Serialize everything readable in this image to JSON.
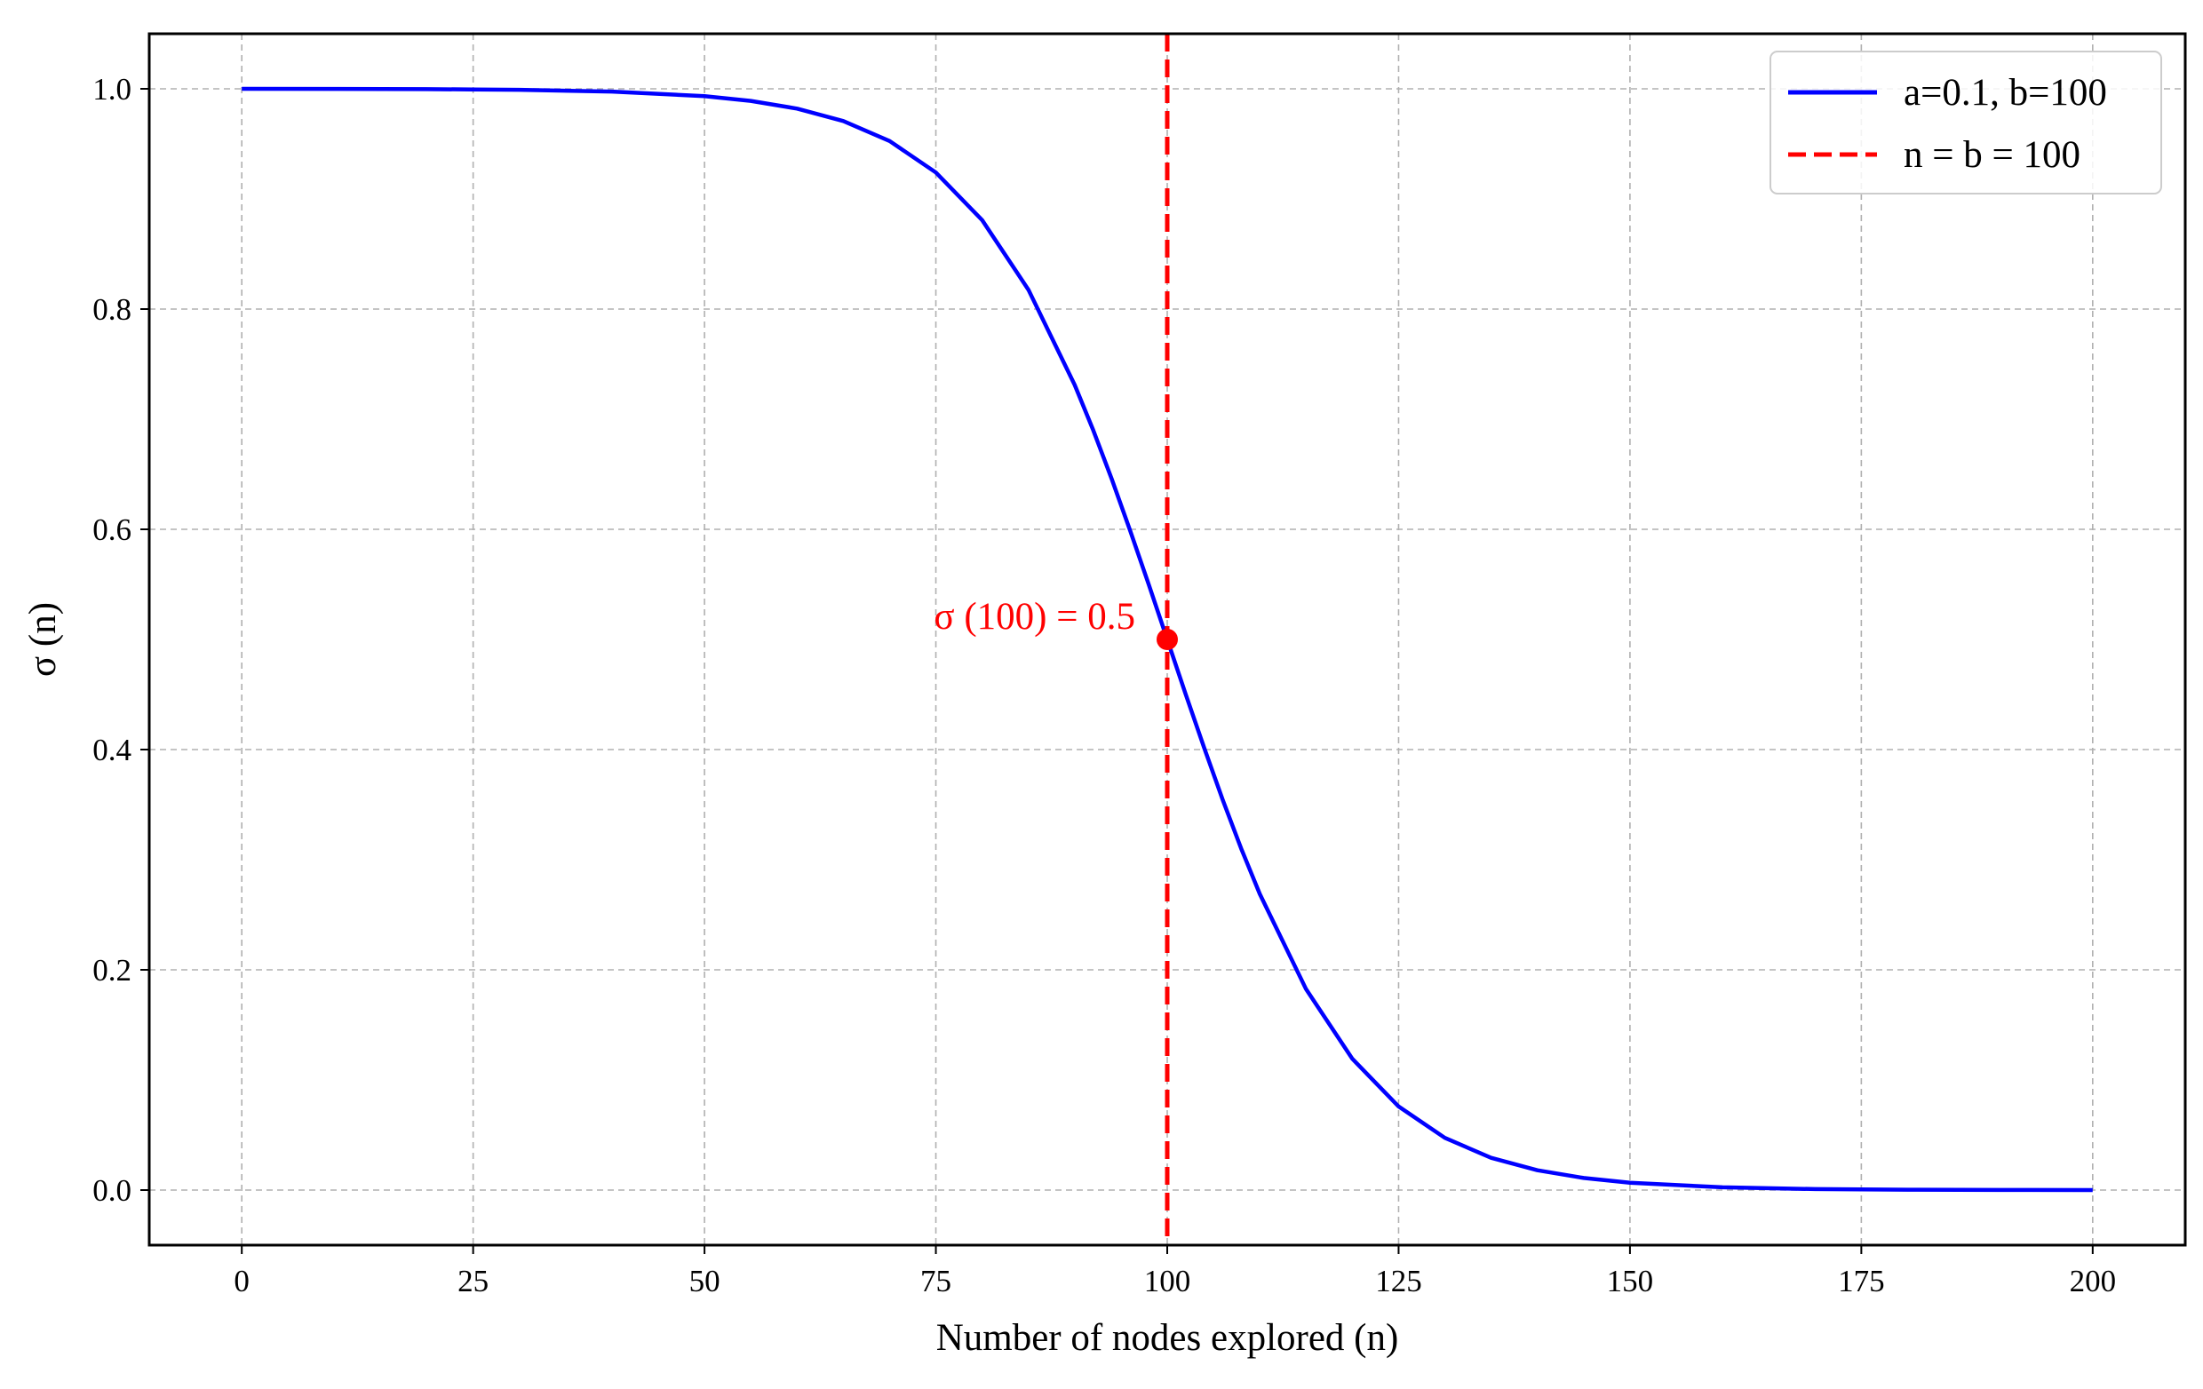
{
  "chart_data": {
    "type": "line",
    "title": "",
    "xlabel": "Number of nodes explored (n)",
    "ylabel": "σ (n)",
    "xlim": [
      -10,
      210
    ],
    "ylim": [
      -0.05,
      1.05
    ],
    "xticks": [
      0,
      25,
      50,
      75,
      100,
      125,
      150,
      175,
      200
    ],
    "yticks": [
      0.0,
      0.2,
      0.4,
      0.6,
      0.8,
      1.0
    ],
    "xtick_labels": [
      "0",
      "25",
      "50",
      "75",
      "100",
      "125",
      "150",
      "175",
      "200"
    ],
    "ytick_labels": [
      "0.0",
      "0.2",
      "0.4",
      "0.6",
      "0.8",
      "1.0"
    ],
    "grid": true,
    "legend_position": "top-right",
    "series": [
      {
        "name": "a=0.1, b=100",
        "color": "#0000ff",
        "style": "solid",
        "x": [
          0,
          10,
          20,
          25,
          30,
          40,
          50,
          55,
          60,
          65,
          70,
          75,
          80,
          85,
          90,
          92,
          94,
          96,
          98,
          100,
          102,
          104,
          106,
          108,
          110,
          115,
          120,
          125,
          130,
          135,
          140,
          145,
          150,
          160,
          170,
          175,
          180,
          190,
          200
        ],
        "y": [
          1.0,
          0.9999,
          0.9997,
          0.9994,
          0.9991,
          0.9975,
          0.9933,
          0.989,
          0.982,
          0.9707,
          0.9526,
          0.924,
          0.8808,
          0.8176,
          0.7311,
          0.69,
          0.6457,
          0.5987,
          0.5498,
          0.5,
          0.4502,
          0.4013,
          0.3543,
          0.31,
          0.2689,
          0.1824,
          0.1192,
          0.0759,
          0.0474,
          0.0293,
          0.018,
          0.011,
          0.0067,
          0.0025,
          0.0009,
          0.0006,
          0.0003,
          0.0001,
          0.0
        ]
      },
      {
        "name": "n = b = 100",
        "color": "#ff0000",
        "style": "dashed",
        "type": "vline",
        "x_value": 100
      }
    ],
    "annotations": [
      {
        "text": "σ (100) = 0.5",
        "x": 100,
        "y": 0.5,
        "color": "#ff0000",
        "marker": "circle"
      }
    ]
  }
}
